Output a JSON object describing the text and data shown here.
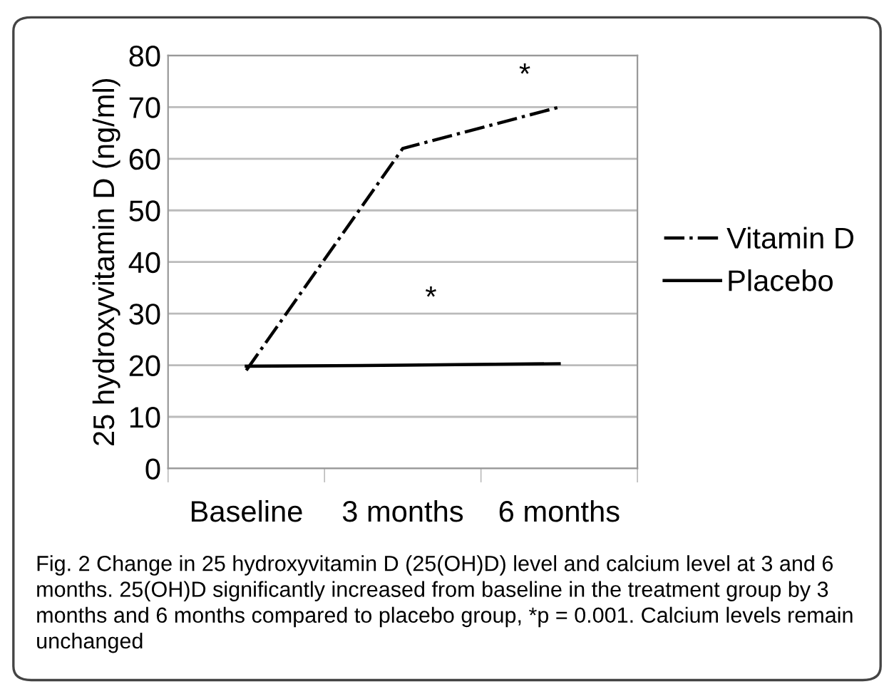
{
  "chart_data": {
    "type": "line",
    "ylabel": "25 hydroxyvitamin D (ng/ml)",
    "categories": [
      "Baseline",
      "3 months",
      "6 months"
    ],
    "series": [
      {
        "name": "Vitamin D",
        "color": "#000000",
        "line_style": "dashdot",
        "values": [
          19,
          62,
          70
        ]
      },
      {
        "name": "Placebo",
        "color": "#000000",
        "line_style": "solid",
        "values": [
          19.8,
          20,
          20.3
        ]
      }
    ],
    "ylim": [
      0,
      80
    ],
    "yticks": [
      0,
      10,
      20,
      30,
      40,
      50,
      60,
      70,
      80
    ],
    "grid": "y",
    "legend": "right",
    "marker": "none",
    "annotations": [
      "*",
      "*",
      "Fig. 2 Change in 25 hydroxyvitamin D (25(OH)D) level and calcium level at 3 and 6 months. 25(OH)D significantly increased from baseline in the treatment group by 3 months and 6 months compared to placebo group, *p = 0.001. Calcium levels remain unchanged"
    ]
  }
}
